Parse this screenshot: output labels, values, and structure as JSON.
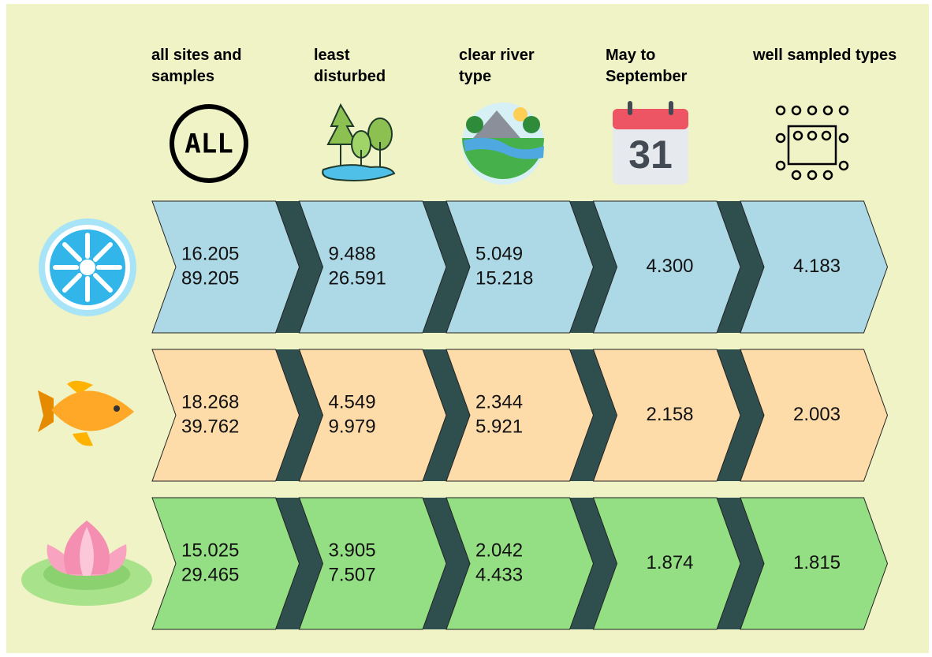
{
  "header": {
    "columns": [
      {
        "lines": [
          "all sites and",
          "samples"
        ]
      },
      {
        "lines": [
          "least",
          "disturbed"
        ]
      },
      {
        "lines": [
          "clear river",
          "type"
        ]
      },
      {
        "lines": [
          "May to",
          "September"
        ]
      },
      {
        "lines": [
          "well sampled types"
        ]
      }
    ]
  },
  "icons": {
    "all_label": "ALL",
    "calendar_day": "31"
  },
  "rows": [
    {
      "color": "#add8e6",
      "cells": [
        [
          "16.205",
          "89.205"
        ],
        [
          "9.488",
          "26.591"
        ],
        [
          "5.049",
          "15.218"
        ],
        [
          "4.300"
        ],
        [
          "4.183"
        ]
      ]
    },
    {
      "color": "#fedcaa",
      "cells": [
        [
          "18.268",
          "39.762"
        ],
        [
          "4.549",
          "9.979"
        ],
        [
          "2.344",
          "5.921"
        ],
        [
          "2.158"
        ],
        [
          "2.003"
        ]
      ]
    },
    {
      "color": "#94df84",
      "cells": [
        [
          "15.025",
          "29.465"
        ],
        [
          "3.905",
          "7.507"
        ],
        [
          "2.042",
          "4.433"
        ],
        [
          "1.874"
        ],
        [
          "1.815"
        ]
      ]
    }
  ]
}
